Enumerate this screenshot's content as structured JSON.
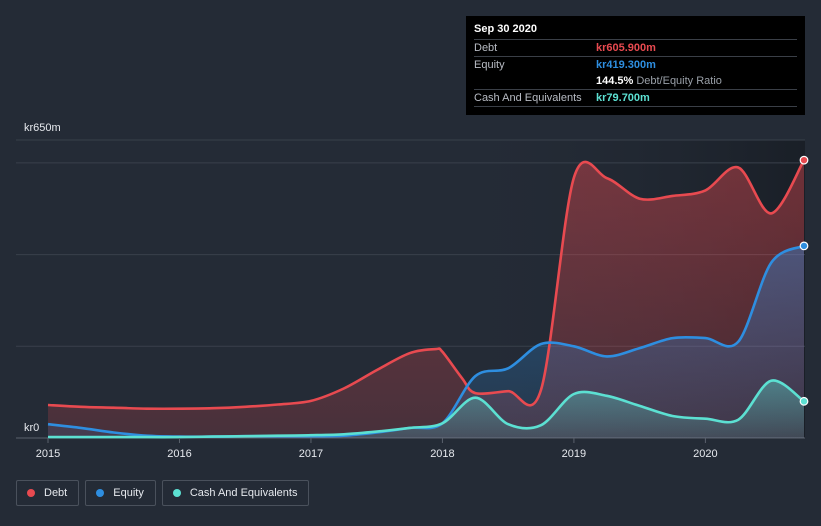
{
  "chart_data": {
    "type": "area",
    "y_top_label": "kr650m",
    "y_bottom_label": "kr0",
    "ylim": [
      0,
      650
    ],
    "x_ticks": [
      "2015",
      "2016",
      "2017",
      "2018",
      "2019",
      "2020"
    ],
    "x_tick_values": [
      2015,
      2016,
      2017,
      2018,
      2019,
      2020
    ],
    "xlim": [
      2015,
      2020.75
    ],
    "series": [
      {
        "name": "Debt",
        "color": "#e84a50",
        "x": [
          2015,
          2015.25,
          2015.5,
          2015.75,
          2016,
          2016.25,
          2016.5,
          2016.75,
          2017,
          2017.25,
          2017.5,
          2017.75,
          2017.95,
          2018,
          2018.15,
          2018.25,
          2018.5,
          2018.75,
          2019,
          2019.25,
          2019.5,
          2019.75,
          2020,
          2020.25,
          2020.5,
          2020.75
        ],
        "values": [
          72,
          68,
          66,
          64,
          64,
          65,
          68,
          73,
          81,
          108,
          148,
          185,
          194,
          188,
          130,
          98,
          102,
          105,
          568,
          567,
          522,
          528,
          540,
          590,
          490,
          606
        ]
      },
      {
        "name": "Equity",
        "color": "#2e8ee0",
        "x": [
          2015,
          2015.25,
          2015.5,
          2015.75,
          2016,
          2016.25,
          2016.5,
          2016.75,
          2017,
          2017.25,
          2017.5,
          2017.75,
          2018,
          2018.25,
          2018.5,
          2018.75,
          2019,
          2019.25,
          2019.5,
          2019.75,
          2020,
          2020.25,
          2020.5,
          2020.75
        ],
        "values": [
          30,
          22,
          12,
          5,
          3,
          3,
          4,
          4,
          4,
          5,
          12,
          22,
          32,
          135,
          152,
          205,
          200,
          178,
          196,
          218,
          218,
          210,
          382,
          419
        ]
      },
      {
        "name": "Cash And Equivalents",
        "color": "#5ce0d2",
        "x": [
          2015,
          2015.25,
          2015.5,
          2015.75,
          2016,
          2016.25,
          2016.5,
          2016.75,
          2017,
          2017.25,
          2017.5,
          2017.75,
          2018,
          2018.25,
          2018.5,
          2018.75,
          2019,
          2019.25,
          2019.5,
          2019.75,
          2020,
          2020.25,
          2020.5,
          2020.75
        ],
        "values": [
          2,
          2,
          2,
          2,
          2,
          3,
          4,
          5,
          6,
          8,
          14,
          22,
          32,
          88,
          30,
          28,
          96,
          92,
          70,
          48,
          42,
          40,
          125,
          80
        ]
      }
    ]
  },
  "tooltip": {
    "date": "Sep 30 2020",
    "debt_label": "Debt",
    "debt_value": "kr605.900m",
    "equity_label": "Equity",
    "equity_value": "kr419.300m",
    "ratio_value": "144.5%",
    "ratio_label": "Debt/Equity Ratio",
    "cash_label": "Cash And Equivalents",
    "cash_value": "kr79.700m"
  },
  "legend": [
    {
      "label": "Debt",
      "color": "#e84a50"
    },
    {
      "label": "Equity",
      "color": "#2e8ee0"
    },
    {
      "label": "Cash And Equivalents",
      "color": "#5ce0d2"
    }
  ]
}
